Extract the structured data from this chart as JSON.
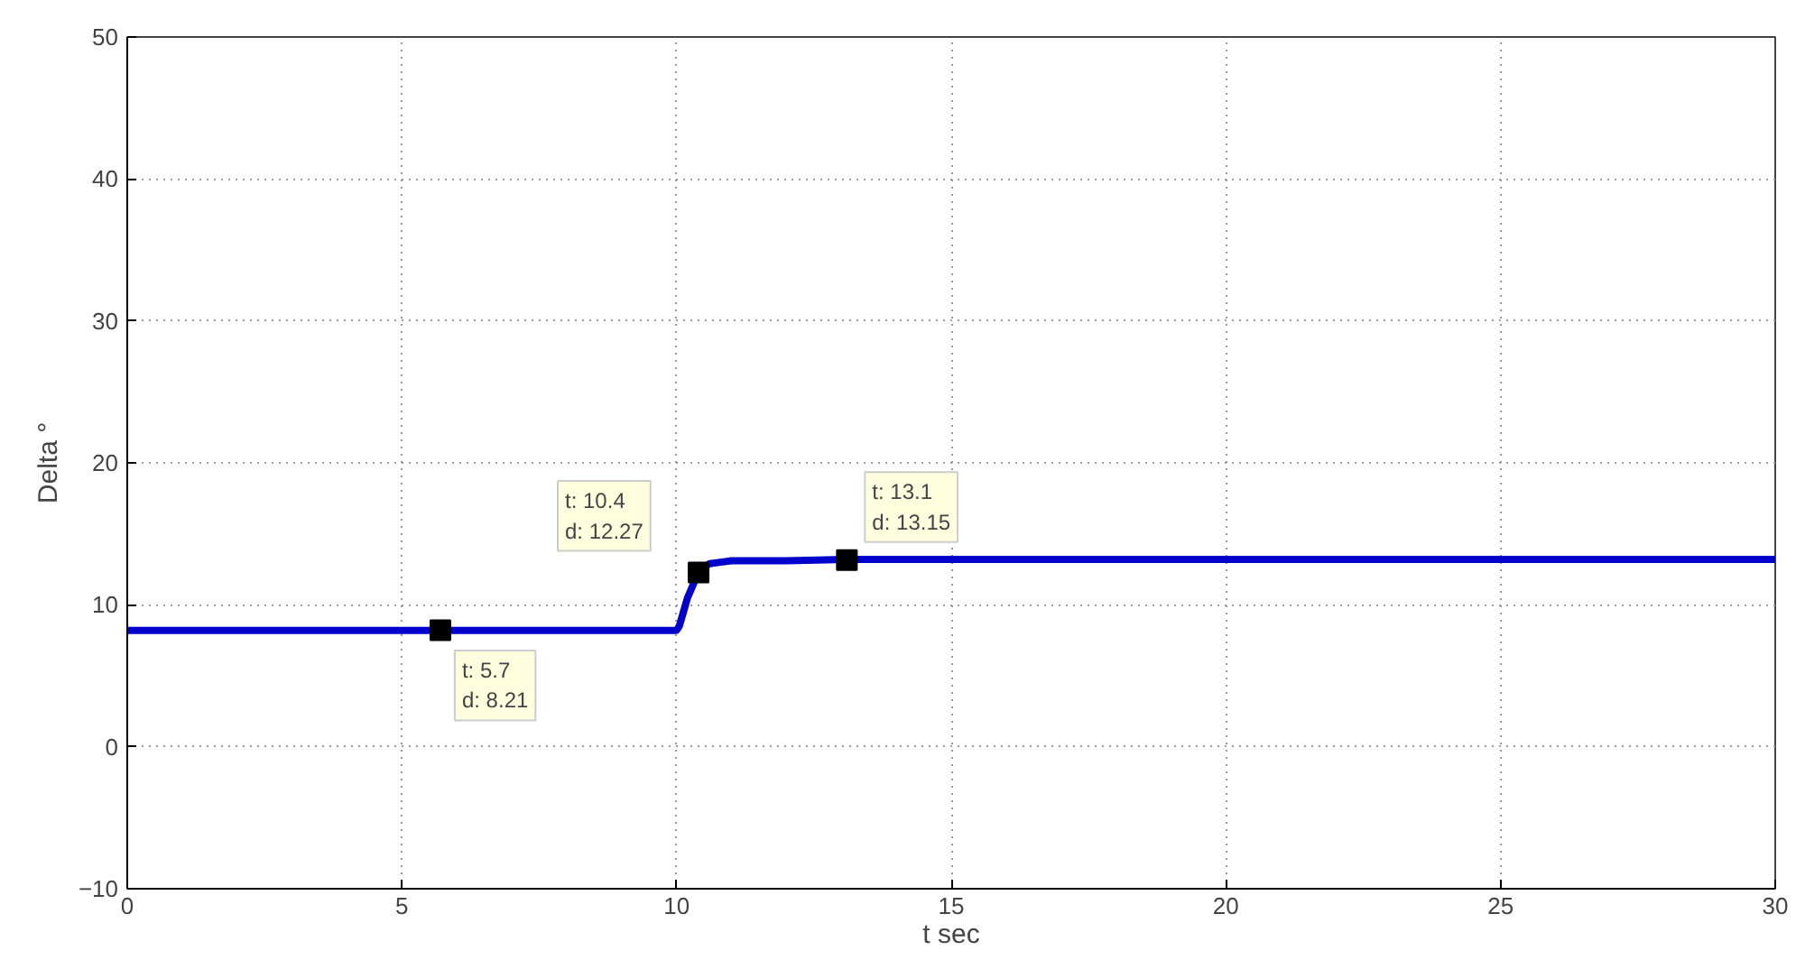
{
  "chart_data": {
    "type": "line",
    "xlabel": "t sec",
    "ylabel": "Delta °",
    "xlim": [
      0,
      30
    ],
    "ylim": [
      -10,
      50
    ],
    "xticks": [
      0,
      5,
      10,
      15,
      20,
      25,
      30
    ],
    "yticks": [
      -10,
      0,
      10,
      20,
      30,
      40,
      50
    ],
    "grid": true,
    "series": [
      {
        "color": "#0000cc",
        "x": [
          0,
          10,
          10.05,
          10.2,
          10.4,
          10.6,
          10.8,
          11,
          11.5,
          12,
          13.1,
          30
        ],
        "values": [
          8.2,
          8.2,
          8.5,
          10.5,
          12.3,
          12.9,
          13,
          13.1,
          13.1,
          13.1,
          13.2,
          13.2
        ]
      },
      {
        "type": "scatter",
        "marker": "square",
        "color": "#000000",
        "x": [
          5.7,
          10.4,
          13.1
        ],
        "values": [
          8.21,
          12.27,
          13.15
        ]
      }
    ],
    "annotations": [
      {
        "text": "t: 5.7\nd: 8.21",
        "x": 5.7,
        "y": 8.21
      },
      {
        "text": "t: 10.4\nd: 12.27",
        "x": 10.4,
        "y": 12.27
      },
      {
        "text": "t: 13.1\nd: 13.15",
        "x": 13.1,
        "y": 13.15
      }
    ]
  }
}
